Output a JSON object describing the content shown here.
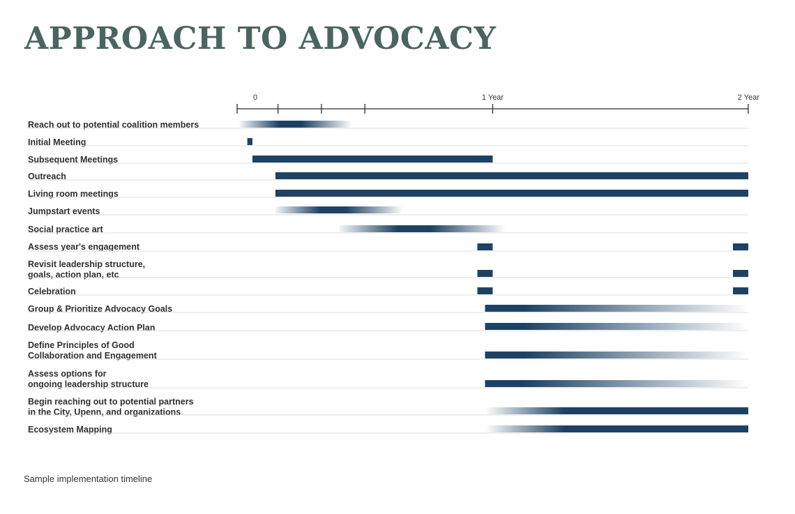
{
  "title": "APPROACH TO ADVOCACY",
  "caption": "Sample implementation timeline",
  "colors": {
    "bar": "#1d4263",
    "title": "#4a6560",
    "rule": "#dcdcdc"
  },
  "axis": {
    "unit": "years",
    "range": [
      0,
      2
    ],
    "labels": [
      {
        "value": 0,
        "text": "0"
      },
      {
        "value": 1,
        "text": "1 Year"
      },
      {
        "value": 2,
        "text": "2 Year"
      }
    ],
    "ticks": [
      0,
      0.16,
      0.33,
      0.5,
      1,
      2
    ]
  },
  "rows": [
    {
      "lines": [
        "Reach out to potential coalition members"
      ],
      "bars": [
        {
          "start": 0.01,
          "end": 0.45,
          "style": "fade-both"
        }
      ]
    },
    {
      "lines": [
        "Initial Meeting"
      ],
      "bars": [
        {
          "start": 0.04,
          "end": 0.06,
          "style": "solid"
        }
      ]
    },
    {
      "lines": [
        "Subsequent Meetings"
      ],
      "bars": [
        {
          "start": 0.06,
          "end": 1.0,
          "style": "solid"
        }
      ]
    },
    {
      "lines": [
        "Outreach"
      ],
      "bars": [
        {
          "start": 0.15,
          "end": 2.0,
          "style": "solid"
        }
      ]
    },
    {
      "lines": [
        "Living room meetings"
      ],
      "bars": [
        {
          "start": 0.15,
          "end": 2.0,
          "style": "solid"
        }
      ]
    },
    {
      "lines": [
        "Jumpstart events"
      ],
      "bars": [
        {
          "start": 0.15,
          "end": 0.65,
          "style": "fade-both"
        }
      ]
    },
    {
      "lines": [
        "Social practice art"
      ],
      "bars": [
        {
          "start": 0.4,
          "end": 1.05,
          "style": "fade-both"
        }
      ]
    },
    {
      "lines": [
        "Assess year's engagement"
      ],
      "bars": [
        {
          "start": 0.94,
          "end": 1.0,
          "style": "solid"
        },
        {
          "start": 1.94,
          "end": 2.0,
          "style": "solid"
        }
      ]
    },
    {
      "lines": [
        "Revisit leadership structure,",
        "goals, action plan, etc"
      ],
      "bars": [
        {
          "start": 0.94,
          "end": 1.0,
          "style": "solid"
        },
        {
          "start": 1.94,
          "end": 2.0,
          "style": "solid"
        }
      ]
    },
    {
      "lines": [
        "Celebration"
      ],
      "bars": [
        {
          "start": 0.94,
          "end": 1.0,
          "style": "solid"
        },
        {
          "start": 1.94,
          "end": 2.0,
          "style": "solid"
        }
      ]
    },
    {
      "lines": [
        "Group & Prioritize Advocacy Goals"
      ],
      "bars": [
        {
          "start": 0.97,
          "end": 2.0,
          "style": "fade-out"
        }
      ]
    },
    {
      "lines": [
        "Develop Advocacy Action Plan"
      ],
      "bars": [
        {
          "start": 0.97,
          "end": 2.0,
          "style": "fade-out"
        }
      ]
    },
    {
      "lines": [
        "Define Principles of Good",
        "Collaboration and Engagement"
      ],
      "bars": [
        {
          "start": 0.97,
          "end": 2.0,
          "style": "fade-out"
        }
      ]
    },
    {
      "lines": [
        "Assess options for",
        "ongoing leadership structure"
      ],
      "bars": [
        {
          "start": 0.97,
          "end": 2.0,
          "style": "fade-out"
        }
      ]
    },
    {
      "lines": [
        "Begin reaching out to potential partners",
        "in the City, Upenn, and organizations"
      ],
      "bars": [
        {
          "start": 0.97,
          "end": 2.0,
          "style": "fade-in"
        }
      ]
    },
    {
      "lines": [
        "Ecosystem Mapping"
      ],
      "bars": [
        {
          "start": 0.97,
          "end": 2.0,
          "style": "fade-in"
        }
      ]
    }
  ]
}
